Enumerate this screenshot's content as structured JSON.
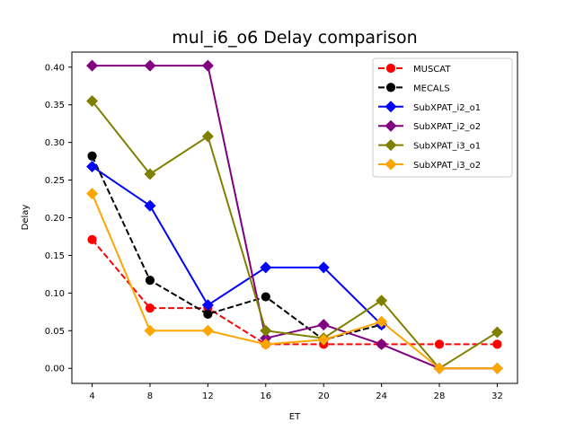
{
  "chart_data": {
    "type": "line",
    "title": "mul_i6_o6 Delay comparison",
    "xlabel": "ET",
    "ylabel": "Delay",
    "x": [
      4,
      8,
      12,
      16,
      20,
      24,
      28,
      32
    ],
    "x_ticks": [
      "4",
      "8",
      "12",
      "16",
      "20",
      "24",
      "28",
      "32"
    ],
    "y_ticks": [
      "0.00",
      "0.05",
      "0.10",
      "0.15",
      "0.20",
      "0.25",
      "0.30",
      "0.35",
      "0.40"
    ],
    "xlim": [
      2.6,
      33.4
    ],
    "ylim": [
      -0.02,
      0.42
    ],
    "grid": false,
    "legend_position": "top-right",
    "series": [
      {
        "name": "MUSCAT",
        "color": "#ff0000",
        "dashed": true,
        "marker": "circle",
        "x": [
          4,
          8,
          12,
          16,
          20,
          24,
          28,
          32
        ],
        "values": [
          0.171,
          0.08,
          0.08,
          0.032,
          0.032,
          0.032,
          0.032,
          0.032
        ]
      },
      {
        "name": "MECALS",
        "color": "#000000",
        "dashed": true,
        "marker": "circle",
        "x": [
          4,
          8,
          12,
          16,
          20,
          24
        ],
        "values": [
          0.282,
          0.117,
          0.072,
          0.095,
          0.038,
          0.058
        ]
      },
      {
        "name": "SubXPAT_i2_o1",
        "color": "#0000ff",
        "dashed": false,
        "marker": "diamond",
        "x": [
          4,
          8,
          12,
          16,
          20,
          24
        ],
        "values": [
          0.268,
          0.216,
          0.084,
          0.134,
          0.134,
          0.058
        ]
      },
      {
        "name": "SubXPAT_i2_o2",
        "color": "#800080",
        "dashed": false,
        "marker": "diamond",
        "x": [
          4,
          8,
          12,
          16,
          20,
          24,
          28,
          32
        ],
        "values": [
          0.402,
          0.402,
          0.402,
          0.04,
          0.058,
          0.032,
          0.0,
          0.0
        ]
      },
      {
        "name": "SubXPAT_i3_o1",
        "color": "#808000",
        "dashed": false,
        "marker": "diamond",
        "x": [
          4,
          8,
          12,
          16,
          20,
          24,
          28,
          32
        ],
        "values": [
          0.355,
          0.258,
          0.308,
          0.05,
          0.04,
          0.09,
          0.0,
          0.048
        ]
      },
      {
        "name": "SubXPAT_i3_o2",
        "color": "#ffa500",
        "dashed": false,
        "marker": "diamond",
        "x": [
          4,
          8,
          12,
          16,
          20,
          24,
          28,
          32
        ],
        "values": [
          0.232,
          0.05,
          0.05,
          0.032,
          0.038,
          0.062,
          0.0,
          0.0
        ]
      }
    ]
  }
}
